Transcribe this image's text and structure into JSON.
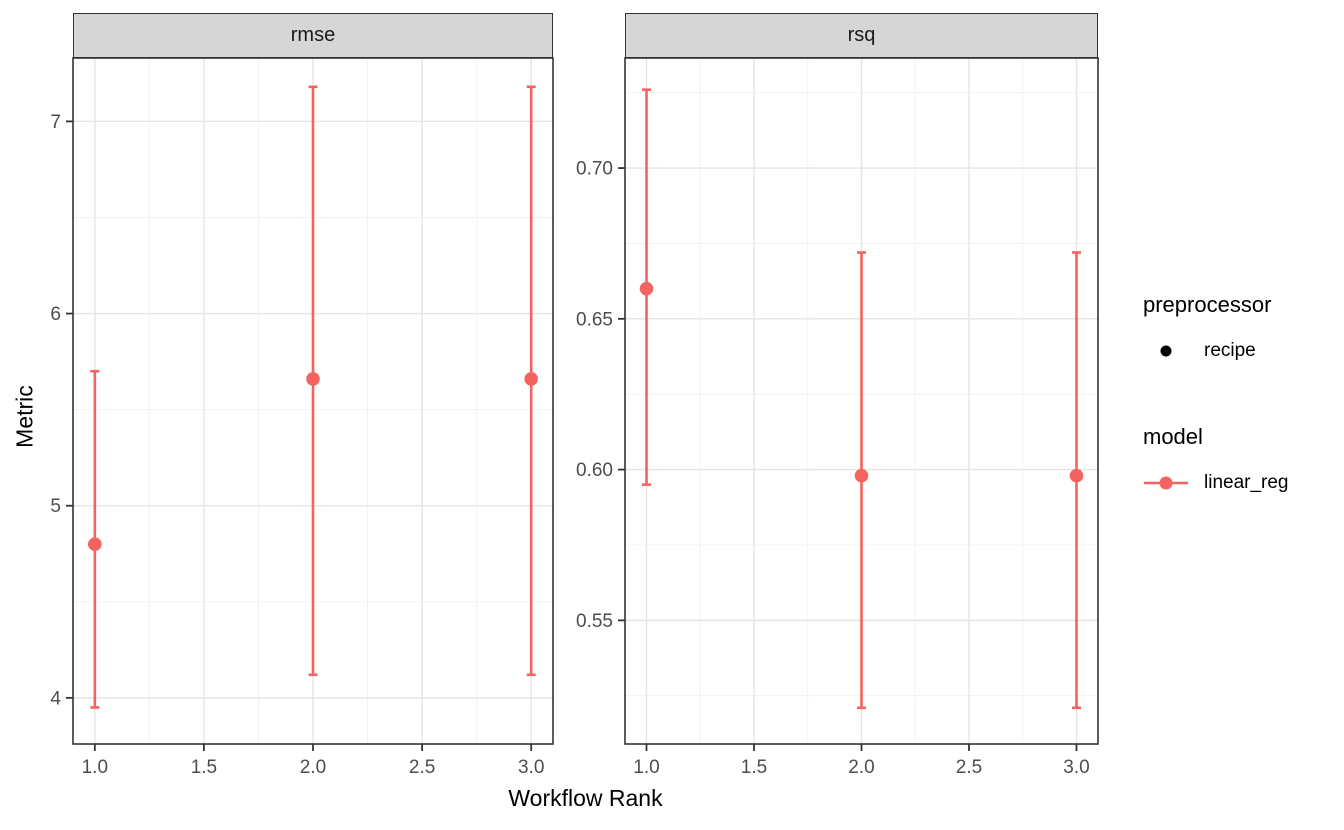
{
  "figure": {
    "xlabel": "Workflow Rank",
    "ylabel": "Metric"
  },
  "facets": [
    {
      "label": "rmse"
    },
    {
      "label": "rsq"
    }
  ],
  "legend": {
    "groups": [
      {
        "title": "preprocessor",
        "items": [
          {
            "label": "recipe",
            "marker": "point",
            "color": "#000000"
          }
        ]
      },
      {
        "title": "model",
        "items": [
          {
            "label": "linear_reg",
            "marker": "point-line",
            "color": "#f4635f"
          }
        ]
      }
    ]
  },
  "colors": {
    "series": "#f4635f",
    "strip_bg": "#d6d6d6",
    "panel_border": "#333333",
    "grid_major": "#e5e5e5",
    "grid_minor": "#f1f1f1",
    "axis_text": "#4d4d4d",
    "tick_mark": "#333333"
  },
  "chart_data": [
    {
      "type": "scatter",
      "facet": "rmse",
      "xlabel": "Workflow Rank",
      "ylabel": "Metric",
      "x_ticks": [
        1.0,
        1.5,
        2.0,
        2.5,
        3.0
      ],
      "x_tick_labels": [
        "1.0",
        "1.5",
        "2.0",
        "2.5",
        "3.0"
      ],
      "y_ticks": [
        4,
        5,
        6,
        7
      ],
      "y_tick_labels": [
        "4",
        "5",
        "6",
        "7"
      ],
      "xlim": [
        0.9,
        3.1
      ],
      "ylim": [
        3.76,
        7.33
      ],
      "grid": true,
      "series": [
        {
          "name": "linear_reg",
          "x": [
            1.0,
            2.0,
            3.0
          ],
          "y": [
            4.8,
            5.66,
            5.66
          ],
          "y_low": [
            3.95,
            4.12,
            4.12
          ],
          "y_high": [
            5.7,
            7.18,
            7.18
          ]
        }
      ]
    },
    {
      "type": "scatter",
      "facet": "rsq",
      "xlabel": "Workflow Rank",
      "ylabel": "Metric",
      "x_ticks": [
        1.0,
        1.5,
        2.0,
        2.5,
        3.0
      ],
      "x_tick_labels": [
        "1.0",
        "1.5",
        "2.0",
        "2.5",
        "3.0"
      ],
      "y_ticks": [
        0.55,
        0.6,
        0.65,
        0.7
      ],
      "y_tick_labels": [
        "0.55",
        "0.60",
        "0.65",
        "0.70"
      ],
      "xlim": [
        0.9,
        3.1
      ],
      "ylim": [
        0.509,
        0.7365
      ],
      "grid": true,
      "series": [
        {
          "name": "linear_reg",
          "x": [
            1.0,
            2.0,
            3.0
          ],
          "y": [
            0.66,
            0.598,
            0.598
          ],
          "y_low": [
            0.595,
            0.521,
            0.521
          ],
          "y_high": [
            0.726,
            0.672,
            0.672
          ]
        }
      ]
    }
  ]
}
